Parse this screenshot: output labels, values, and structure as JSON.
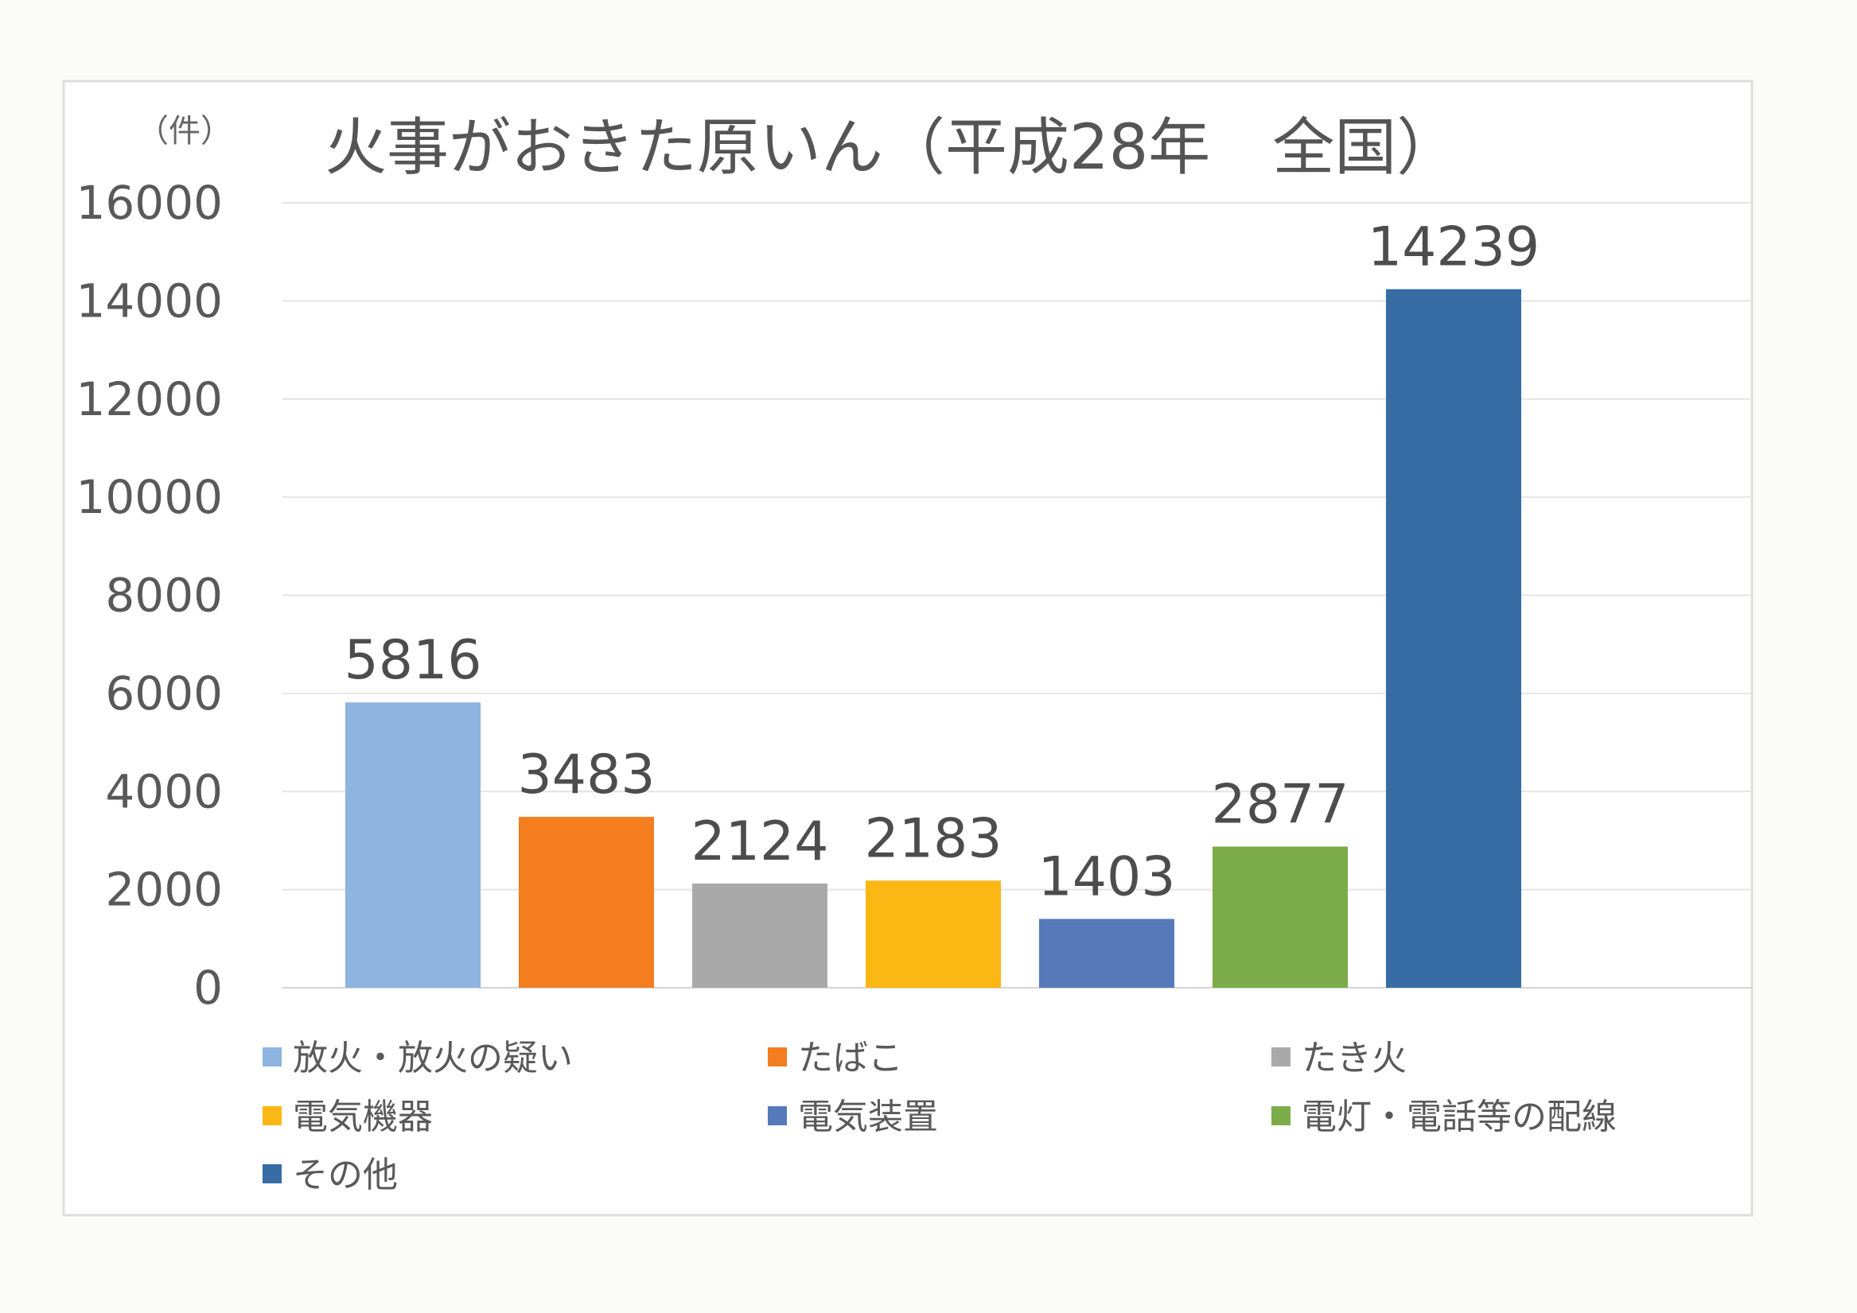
{
  "chart_data": {
    "type": "bar",
    "title": "火事がおきた原いん（平成28年　全国）",
    "unit_label": "（件）",
    "xlabel": "",
    "ylabel": "",
    "ylim": [
      0,
      16000
    ],
    "yticks": [
      0,
      2000,
      4000,
      6000,
      8000,
      10000,
      12000,
      14000,
      16000
    ],
    "grid": true,
    "legend_position": "bottom",
    "categories": [
      "放火・放火の疑い",
      "たばこ",
      "たき火",
      "電気機器",
      "電気装置",
      "電灯・電話等の配線",
      "その他"
    ],
    "values": [
      5816,
      3483,
      2124,
      2183,
      1403,
      2877,
      14239
    ],
    "colors": [
      "#8eb4e0",
      "#f47d1f",
      "#a9a9a9",
      "#fbb714",
      "#5679b9",
      "#7cac4a",
      "#376ca5"
    ],
    "data_labels": [
      "5816",
      "3483",
      "2124",
      "2183",
      "1403",
      "2877",
      "14239"
    ]
  }
}
